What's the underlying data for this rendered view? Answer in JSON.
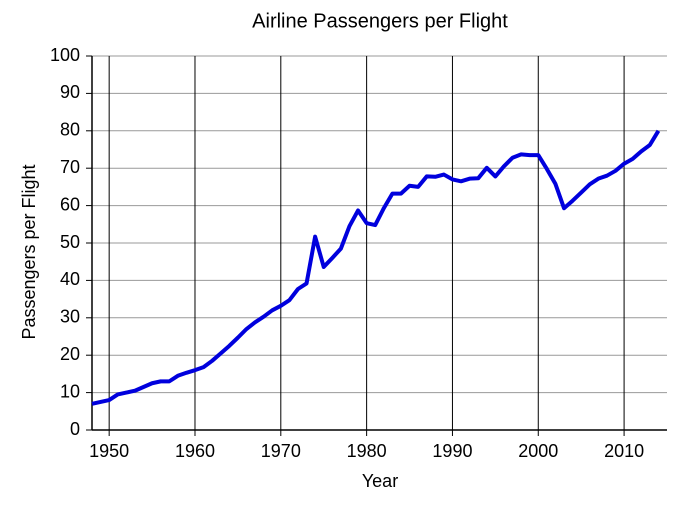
{
  "chart_data": {
    "type": "line",
    "title": "Airline Passengers per Flight",
    "x_label": "Year",
    "y_label": "Passengers per Flight",
    "x": [
      1948,
      1949,
      1950,
      1951,
      1952,
      1953,
      1954,
      1955,
      1956,
      1957,
      1958,
      1959,
      1960,
      1961,
      1962,
      1963,
      1964,
      1965,
      1966,
      1967,
      1968,
      1969,
      1970,
      1971,
      1972,
      1973,
      1974,
      1975,
      1976,
      1977,
      1978,
      1979,
      1980,
      1981,
      1982,
      1983,
      1984,
      1985,
      1986,
      1987,
      1988,
      1989,
      1990,
      1991,
      1992,
      1993,
      1994,
      1995,
      1996,
      1997,
      1998,
      1999,
      2000,
      2001,
      2002,
      2003,
      2004,
      2005,
      2006,
      2007,
      2008,
      2009,
      2010,
      2011,
      2012,
      2013,
      2014
    ],
    "series": [
      {
        "name": "Passengers per Flight",
        "color": "#0000dd",
        "values": [
          7,
          7.5,
          8,
          9.5,
          10,
          10.5,
          11.5,
          12.5,
          13,
          13,
          14.5,
          15.3,
          16,
          16.8,
          18.5,
          20.5,
          22.5,
          24.7,
          27,
          28.8,
          30.3,
          32,
          33.2,
          34.7,
          37.7,
          39.2,
          51.7,
          43.6,
          46,
          48.5,
          54.5,
          58.7,
          55.3,
          54.8,
          59.3,
          63.2,
          63.2,
          65.3,
          65,
          67.8,
          67.7,
          68.3,
          67,
          66.5,
          67.2,
          67.3,
          70.1,
          67.8,
          70.5,
          72.8,
          73.7,
          73.5,
          73.5,
          69.8,
          65.8,
          59.3,
          61.3,
          63.5,
          65.7,
          67.2,
          68,
          69.3,
          71.2,
          72.5,
          74.5,
          76.2,
          80
        ]
      }
    ],
    "xlim": [
      1948,
      2015
    ],
    "xticks": [
      1950,
      1960,
      1970,
      1980,
      1990,
      2000,
      2010
    ],
    "ylim": [
      0,
      100
    ],
    "yticks": [
      0,
      10,
      20,
      30,
      40,
      50,
      60,
      70,
      80,
      90,
      100
    ],
    "grid": true
  }
}
